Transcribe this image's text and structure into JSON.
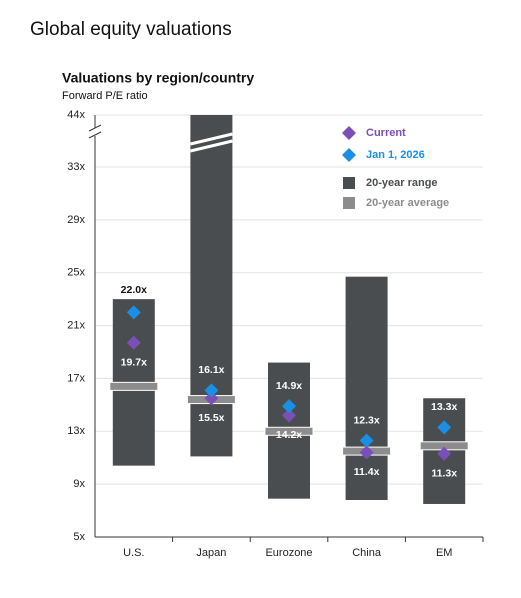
{
  "page_title": "Global equity valuations",
  "chart_data": {
    "type": "range",
    "title": "Valuations by region/country",
    "subtitle": "Forward P/E ratio",
    "categories": [
      "U.S.",
      "Japan",
      "Eurozone",
      "China",
      "EM"
    ],
    "ylim": [
      5,
      44
    ],
    "axis_break": 33,
    "yticks": [
      {
        "value": 5,
        "label": "5x"
      },
      {
        "value": 9,
        "label": "9x"
      },
      {
        "value": 13,
        "label": "13x"
      },
      {
        "value": 17,
        "label": "17x"
      },
      {
        "value": 21,
        "label": "21x"
      },
      {
        "value": 25,
        "label": "25x"
      },
      {
        "value": 29,
        "label": "29x"
      },
      {
        "value": 33,
        "label": "33x"
      },
      {
        "value": 44,
        "label": "44x"
      }
    ],
    "grid": true,
    "series": [
      {
        "name": "20-year range",
        "color": "#4a4d4f",
        "low": [
          10.4,
          11.1,
          7.9,
          7.8,
          7.5
        ],
        "high": [
          23.0,
          44,
          18.2,
          24.7,
          15.5
        ]
      },
      {
        "name": "20-year average",
        "color": "#8c8c8c",
        "values": [
          16.4,
          15.4,
          13.0,
          11.5,
          11.9
        ]
      },
      {
        "name": "Current",
        "color": "#7b4fb8",
        "values": [
          19.7,
          15.5,
          14.2,
          11.4,
          11.3
        ],
        "value_labels": [
          "19.7x",
          "15.5x",
          "14.2x",
          "11.4x",
          "11.3x"
        ]
      },
      {
        "name": "Jan 1, 2026",
        "color": "#1a8fe3",
        "values": [
          22.0,
          16.1,
          14.9,
          12.3,
          13.3
        ],
        "value_labels": [
          "22.0x",
          "16.1x",
          "14.9x",
          "12.3x",
          "13.3x"
        ]
      }
    ]
  }
}
